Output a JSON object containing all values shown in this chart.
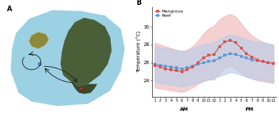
{
  "panel_b": {
    "ylabel": "Temperature (°C)",
    "x_labels": [
      "1",
      "2",
      "3",
      "4",
      "5",
      "6",
      "7",
      "8",
      "9",
      "10",
      "11",
      "12",
      "1",
      "2",
      "3",
      "4",
      "5",
      "6",
      "7",
      "8",
      "9",
      "10",
      "11"
    ],
    "mangrove_mean": [
      25.7,
      25.5,
      25.3,
      25.2,
      25.1,
      25.0,
      25.2,
      25.5,
      26.0,
      26.5,
      26.8,
      26.9,
      27.8,
      28.3,
      28.5,
      28.2,
      27.6,
      27.0,
      26.6,
      26.3,
      26.1,
      26.0,
      25.9
    ],
    "mangrove_upper": [
      28.2,
      28.0,
      27.8,
      27.6,
      27.4,
      27.2,
      27.4,
      27.8,
      28.4,
      29.2,
      29.8,
      30.1,
      30.8,
      31.2,
      31.4,
      31.1,
      30.4,
      29.6,
      29.0,
      28.6,
      28.3,
      28.1,
      27.9
    ],
    "mangrove_lower": [
      23.2,
      23.1,
      23.0,
      22.9,
      22.8,
      22.7,
      22.9,
      23.2,
      23.6,
      23.9,
      24.1,
      24.1,
      24.8,
      25.4,
      25.6,
      25.3,
      24.8,
      24.4,
      24.2,
      24.0,
      23.9,
      23.8,
      23.7
    ],
    "reef_mean": [
      25.8,
      25.7,
      25.6,
      25.5,
      25.4,
      25.3,
      25.4,
      25.6,
      25.8,
      26.0,
      26.1,
      26.2,
      26.5,
      26.8,
      27.0,
      26.9,
      26.7,
      26.5,
      26.3,
      26.2,
      26.1,
      26.0,
      25.9
    ],
    "reef_upper": [
      27.8,
      27.7,
      27.6,
      27.5,
      27.4,
      27.3,
      27.4,
      27.6,
      27.8,
      28.0,
      28.1,
      28.3,
      28.6,
      28.9,
      29.1,
      29.0,
      28.8,
      28.6,
      28.4,
      28.3,
      28.2,
      28.1,
      28.0
    ],
    "reef_lower": [
      23.8,
      23.7,
      23.6,
      23.5,
      23.4,
      23.3,
      23.4,
      23.6,
      23.8,
      24.0,
      24.1,
      24.3,
      24.5,
      24.7,
      24.9,
      24.8,
      24.6,
      24.4,
      24.2,
      24.1,
      24.0,
      23.9,
      23.8
    ],
    "yticks": [
      24,
      26,
      28,
      30
    ],
    "ylim": [
      22.2,
      32.2
    ],
    "mangrove_color": "#d9534f",
    "reef_color": "#5b9bd5",
    "mangrove_fill": "#f0b8b8",
    "reef_fill": "#b8cee8"
  },
  "map": {
    "bg_color": "#5da8d0",
    "reef_blob_color": "#90cce0",
    "island_color": "#4a5e38",
    "mangrove_color": "#3a4a2a",
    "small_island_face": "#8a8a3a",
    "small_island_edge": "#c8a84a",
    "reef_marker": "#5b9bd5",
    "mangrove_marker": "#d9534f",
    "arrow_color": "#222222",
    "scale_color": "#ffffff"
  }
}
